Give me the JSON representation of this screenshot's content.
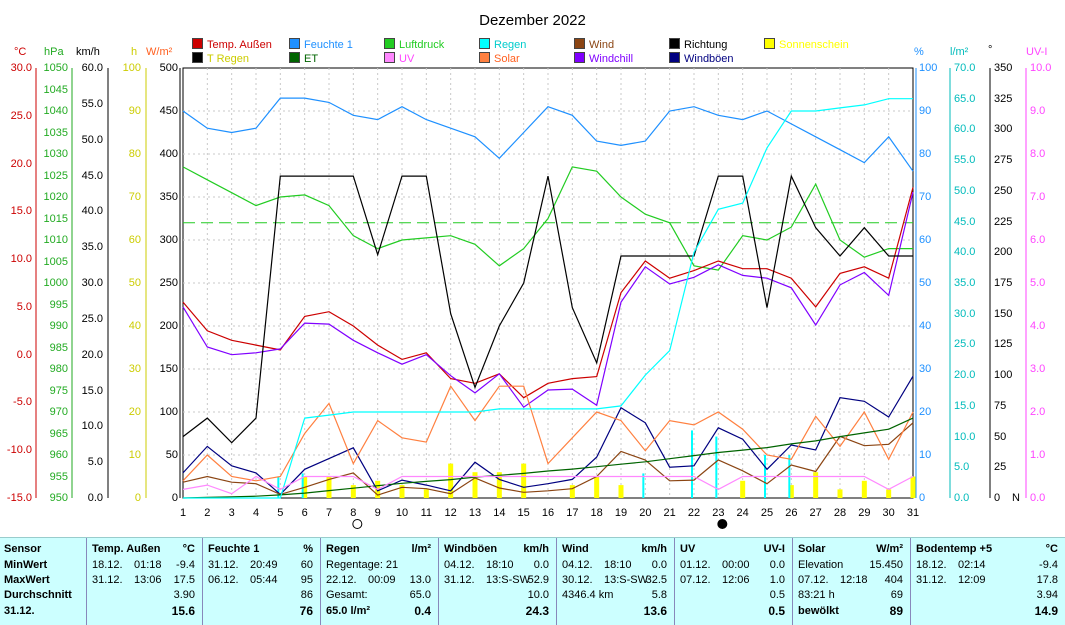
{
  "title": "Dezember 2022",
  "axis_titles": {
    "temp": "°C",
    "pressure": "hPa",
    "wind": "km/h",
    "sun": "h",
    "solar": "W/m²",
    "humidity": "%",
    "rain": "l/m²",
    "direction": "°",
    "uv": "UV-I"
  },
  "legend": [
    {
      "label": "Temp. Außen",
      "color": "#cc0000",
      "text_color": "#cc0000"
    },
    {
      "label": "Feuchte 1",
      "color": "#1e90ff",
      "text_color": "#1e90ff"
    },
    {
      "label": "Luftdruck",
      "color": "#22cc22",
      "text_color": "#22cc22"
    },
    {
      "label": "Regen",
      "color": "#00ffff",
      "text_color": "#00cccc"
    },
    {
      "label": "Wind",
      "color": "#8b4513",
      "text_color": "#8b4513"
    },
    {
      "label": "Richtung",
      "color": "#000000",
      "text_color": "#000000"
    },
    {
      "label": "Sonnenschein",
      "color": "#ffff00",
      "text_color": "#ffff00"
    },
    {
      "label": "T Regen",
      "color": "#000000",
      "text_color": "#cccc00"
    },
    {
      "label": "ET",
      "color": "#006400",
      "text_color": "#006400"
    },
    {
      "label": "UV",
      "color": "#ff88ff",
      "text_color": "#ff44ff"
    },
    {
      "label": "Solar",
      "color": "#ff8040",
      "text_color": "#ff6020"
    },
    {
      "label": "Windchill",
      "color": "#8000ff",
      "text_color": "#8000ff"
    },
    {
      "label": "Windböen",
      "color": "#000080",
      "text_color": "#000080"
    }
  ],
  "chart_data": {
    "type": "line",
    "title": "Dezember 2022",
    "x": [
      1,
      2,
      3,
      4,
      5,
      6,
      7,
      8,
      9,
      10,
      11,
      12,
      13,
      14,
      15,
      16,
      17,
      18,
      19,
      20,
      21,
      22,
      23,
      24,
      25,
      26,
      27,
      28,
      29,
      30,
      31
    ],
    "axes": {
      "temp_c": {
        "ylim": [
          -15,
          30
        ],
        "ticks": [
          "30.0",
          "25.0",
          "20.0",
          "15.0",
          "10.0",
          "5.0",
          "0.0",
          "-5.0",
          "-10.0",
          "-15.0"
        ]
      },
      "pressure_hpa": {
        "ylim": [
          950,
          1050
        ],
        "ticks": [
          "1050",
          "1045",
          "1040",
          "1035",
          "1030",
          "1025",
          "1020",
          "1015",
          "1010",
          "1005",
          "1000",
          "995",
          "990",
          "985",
          "980",
          "975",
          "970",
          "965",
          "960",
          "955",
          "950"
        ]
      },
      "wind_kmh": {
        "ylim": [
          0,
          60
        ],
        "ticks": [
          "60.0",
          "55.0",
          "50.0",
          "45.0",
          "40.0",
          "35.0",
          "30.0",
          "25.0",
          "20.0",
          "15.0",
          "10.0",
          "5.0",
          "0.0"
        ]
      },
      "sun_h": {
        "ylim": [
          0,
          100
        ],
        "ticks": [
          "100",
          "90",
          "80",
          "70",
          "60",
          "50",
          "40",
          "30",
          "20",
          "10",
          "0"
        ]
      },
      "solar_wm2": {
        "ylim": [
          0,
          500
        ],
        "ticks": [
          "500",
          "450",
          "400",
          "350",
          "300",
          "250",
          "200",
          "150",
          "100",
          "50",
          "0"
        ]
      },
      "humidity_pct": {
        "ylim": [
          0,
          100
        ],
        "ticks": [
          "100",
          "90",
          "80",
          "70",
          "60",
          "50",
          "40",
          "30",
          "20",
          "10",
          "0"
        ]
      },
      "rain_lm2": {
        "ylim": [
          0,
          70
        ],
        "ticks": [
          "70.0",
          "65.0",
          "60.0",
          "55.0",
          "50.0",
          "45.0",
          "40.0",
          "35.0",
          "30.0",
          "25.0",
          "20.0",
          "15.0",
          "10.0",
          "5.0",
          "0.0"
        ]
      },
      "direction_deg": {
        "ylim": [
          0,
          350
        ],
        "ticks": [
          "350",
          "325",
          "300",
          "275",
          "250",
          "225",
          "200",
          "175",
          "150",
          "125",
          "100",
          "75",
          "50",
          "25",
          "0"
        ],
        "zero_label": "N"
      },
      "uv_index": {
        "ylim": [
          0,
          10
        ],
        "ticks": [
          "10.0",
          "9.0",
          "8.0",
          "7.0",
          "6.0",
          "5.0",
          "4.0",
          "3.0",
          "2.0",
          "1.0",
          "0.0"
        ]
      }
    },
    "series": [
      {
        "name": "Feuchte 1",
        "axis": "humidity_pct",
        "color": "#1e90ff",
        "values": [
          90,
          86,
          85,
          86,
          93,
          93,
          92,
          89,
          88,
          91,
          88,
          86,
          84,
          79,
          85,
          91,
          89,
          83,
          82,
          83,
          90,
          91,
          89,
          88,
          90,
          87,
          84,
          81,
          78,
          84,
          76
        ]
      },
      {
        "name": "Luftdruck",
        "axis": "pressure_hpa",
        "color": "#22cc22",
        "values": [
          1027,
          1024,
          1021,
          1018,
          1020,
          1020.5,
          1018,
          1011,
          1008,
          1010,
          1010.5,
          1011,
          1009,
          1004,
          1008,
          1015,
          1027,
          1026,
          1020,
          1016,
          1014,
          1004,
          1003,
          1011,
          1010,
          1013,
          1023,
          1010,
          1006,
          1008,
          1008
        ]
      },
      {
        "name": "Temp. Außen",
        "axis": "temp_c",
        "color": "#cc0000",
        "values": [
          5.5,
          2.5,
          1.5,
          1.0,
          0.5,
          4.0,
          4.5,
          3.0,
          1.0,
          -0.5,
          0.2,
          -2.5,
          -3.0,
          -2.0,
          -4.5,
          -3.0,
          -2.5,
          -2.3,
          6.5,
          9.8,
          8.0,
          8.8,
          9.8,
          9.0,
          9.0,
          8.0,
          5.0,
          8.5,
          9.2,
          8.0,
          17.5
        ]
      },
      {
        "name": "Windchill",
        "axis": "temp_c",
        "color": "#8000ff",
        "values": [
          5.0,
          0.8,
          0.0,
          0.2,
          0.6,
          3.3,
          3.2,
          1.5,
          0.2,
          -1.0,
          0.0,
          -2.2,
          -4.0,
          -2.0,
          -5.5,
          -3.7,
          -3.6,
          -5.3,
          5.5,
          9.2,
          7.4,
          8.1,
          9.4,
          8.3,
          8.0,
          7.0,
          3.1,
          7.3,
          8.6,
          6.2,
          17.0
        ]
      },
      {
        "name": "Richtung",
        "axis": "direction_deg",
        "color": "#000000",
        "values": [
          50,
          65,
          45,
          65,
          262,
          262,
          262,
          262,
          198,
          262,
          262,
          150,
          90,
          140,
          175,
          262,
          155,
          110,
          197,
          197,
          197,
          197,
          262,
          262,
          155,
          262,
          220,
          197,
          220,
          197,
          197
        ]
      },
      {
        "name": "Windböen",
        "axis": "wind_kmh",
        "color": "#000080",
        "values": [
          3.5,
          7.2,
          4.5,
          3.5,
          0.5,
          4.0,
          5.5,
          7.0,
          1.0,
          2.5,
          1.8,
          1.0,
          5.0,
          2.6,
          1.5,
          2.0,
          2.6,
          5.7,
          12.6,
          10.5,
          4.3,
          4.5,
          9.8,
          8.2,
          4.0,
          7.4,
          6.7,
          14.0,
          13.5,
          11.3,
          17.0
        ]
      },
      {
        "name": "Wind",
        "axis": "wind_kmh",
        "color": "#8b4513",
        "values": [
          2.2,
          3.0,
          2.2,
          2.0,
          0.5,
          1.5,
          2.6,
          3.5,
          0.4,
          1.5,
          1.3,
          0.6,
          2.8,
          1.4,
          0.8,
          1.0,
          1.3,
          3.0,
          6.5,
          5.3,
          2.4,
          2.5,
          5.3,
          3.8,
          2.0,
          4.6,
          3.7,
          8.6,
          7.3,
          7.5,
          10.5
        ]
      },
      {
        "name": "Solar",
        "axis": "solar_wm2",
        "color": "#ff8040",
        "values": [
          20,
          50,
          25,
          20,
          25,
          75,
          110,
          40,
          90,
          70,
          65,
          130,
          90,
          130,
          130,
          40,
          70,
          100,
          90,
          55,
          90,
          85,
          100,
          80,
          50,
          45,
          95,
          60,
          100,
          45,
          100
        ]
      },
      {
        "name": "ET",
        "axis": "rain_lm2",
        "color": "#006400",
        "values": [
          0.0,
          0.1,
          0.2,
          0.3,
          0.5,
          0.8,
          1.2,
          1.6,
          2.0,
          2.4,
          2.7,
          3.0,
          3.4,
          3.7,
          4.0,
          4.4,
          4.7,
          5.1,
          5.5,
          5.9,
          6.4,
          6.9,
          7.4,
          7.8,
          8.2,
          8.8,
          9.3,
          10.0,
          10.6,
          11.2,
          13.0
        ]
      },
      {
        "name": "Regen",
        "axis": "rain_lm2",
        "color": "#00ffff",
        "values": [
          0.0,
          0.0,
          0.0,
          0.0,
          0.0,
          13.0,
          13.5,
          14.0,
          14.0,
          14.0,
          14.0,
          14.0,
          14.0,
          14.5,
          14.5,
          14.5,
          14.5,
          14.5,
          15.0,
          20.0,
          24.0,
          40.0,
          47.0,
          48.0,
          57.0,
          63.0,
          63.0,
          63.5,
          64.0,
          65.0,
          65.0
        ]
      },
      {
        "name": "UV",
        "axis": "uv_index",
        "color": "#ff88ff",
        "values": [
          0.2,
          0.3,
          0.1,
          0.5,
          0.2,
          0.5,
          0.5,
          0.5,
          0.2,
          0.5,
          0.5,
          0.5,
          0.5,
          0.5,
          0.5,
          0.5,
          0.5,
          0.5,
          0.5,
          0.5,
          0.5,
          0.5,
          0.2,
          0.5,
          0.5,
          0.5,
          0.5,
          0.5,
          0.5,
          0.2,
          0.5
        ]
      }
    ],
    "bars": [
      {
        "name": "Sonnenschein",
        "axis": "sun_h",
        "color": "#ffff00",
        "values": [
          0,
          0,
          0,
          0,
          0,
          5,
          5,
          3,
          4,
          3,
          2,
          8,
          6,
          6,
          8,
          0,
          3,
          5,
          3,
          0,
          0,
          0,
          0,
          4,
          0,
          3,
          6,
          2,
          4,
          2,
          5
        ]
      },
      {
        "name": "Tagesregen",
        "axis": "rain_lm2",
        "color": "#00ffff",
        "values": [
          0,
          0,
          0,
          0,
          3.5,
          4,
          0,
          0,
          0,
          0,
          0,
          0,
          0,
          0,
          0,
          0,
          0,
          0,
          0,
          4,
          0,
          11,
          10,
          0,
          7,
          7,
          0,
          0,
          0,
          0,
          0
        ]
      }
    ],
    "moon_phases": [
      {
        "day": 8,
        "phase": "full"
      },
      {
        "day": 23,
        "phase": "new"
      }
    ]
  },
  "summary": {
    "row_labels": [
      "Sensor",
      "MinWert",
      "MaxWert",
      "Durchschnitt",
      "31.12."
    ],
    "sections": [
      {
        "title": "Temp. Außen",
        "unit": "°C",
        "rows": [
          [
            "18.12.",
            "01:18",
            "-9.4"
          ],
          [
            "31.12.",
            "13:06",
            "17.5"
          ],
          [
            "",
            "",
            "3.90"
          ],
          [
            "",
            "",
            "15.6"
          ]
        ]
      },
      {
        "title": "Feuchte 1",
        "unit": "%",
        "rows": [
          [
            "31.12.",
            "20:49",
            "60"
          ],
          [
            "06.12.",
            "05:44",
            "95"
          ],
          [
            "",
            "",
            "86"
          ],
          [
            "",
            "",
            "76"
          ]
        ]
      },
      {
        "title": "Regen",
        "unit": "l/m²",
        "rows": [
          [
            "Regentage: 21",
            "",
            ""
          ],
          [
            "22.12.",
            "00:09",
            "13.0"
          ],
          [
            "Gesamt:",
            "",
            "65.0"
          ],
          [
            "65.0 l/m²",
            "",
            "0.4"
          ]
        ]
      },
      {
        "title": "Windböen",
        "unit": "km/h",
        "rows": [
          [
            "04.12.",
            "18:10",
            "0.0"
          ],
          [
            "31.12.",
            "13:S-SW",
            "52.9"
          ],
          [
            "",
            "",
            "10.0"
          ],
          [
            "",
            "",
            "24.3"
          ]
        ]
      },
      {
        "title": "Wind",
        "unit": "km/h",
        "rows": [
          [
            "04.12.",
            "18:10",
            "0.0"
          ],
          [
            "30.12.",
            "13:S-SW",
            "32.5"
          ],
          [
            "4346.4 km",
            "",
            "5.8"
          ],
          [
            "",
            "",
            "13.6"
          ]
        ]
      },
      {
        "title": "UV",
        "unit": "UV-I",
        "rows": [
          [
            "01.12.",
            "00:00",
            "0.0"
          ],
          [
            "07.12.",
            "12:06",
            "1.0"
          ],
          [
            "",
            "",
            "0.5"
          ],
          [
            "",
            "",
            "0.5"
          ]
        ]
      },
      {
        "title": "Solar",
        "unit": "W/m²",
        "rows": [
          [
            "Elevation",
            "",
            "15.450"
          ],
          [
            "07.12.",
            "12:18",
            "404"
          ],
          [
            "83:21 h",
            "",
            "69"
          ],
          [
            "bewölkt",
            "",
            "89"
          ]
        ]
      },
      {
        "title": "Bodentemp +5",
        "unit": "°C",
        "rows": [
          [
            "18.12.",
            "02:14",
            "-9.4"
          ],
          [
            "31.12.",
            "12:09",
            "17.8"
          ],
          [
            "",
            "",
            "3.94"
          ],
          [
            "",
            "",
            "14.9"
          ]
        ]
      }
    ]
  }
}
